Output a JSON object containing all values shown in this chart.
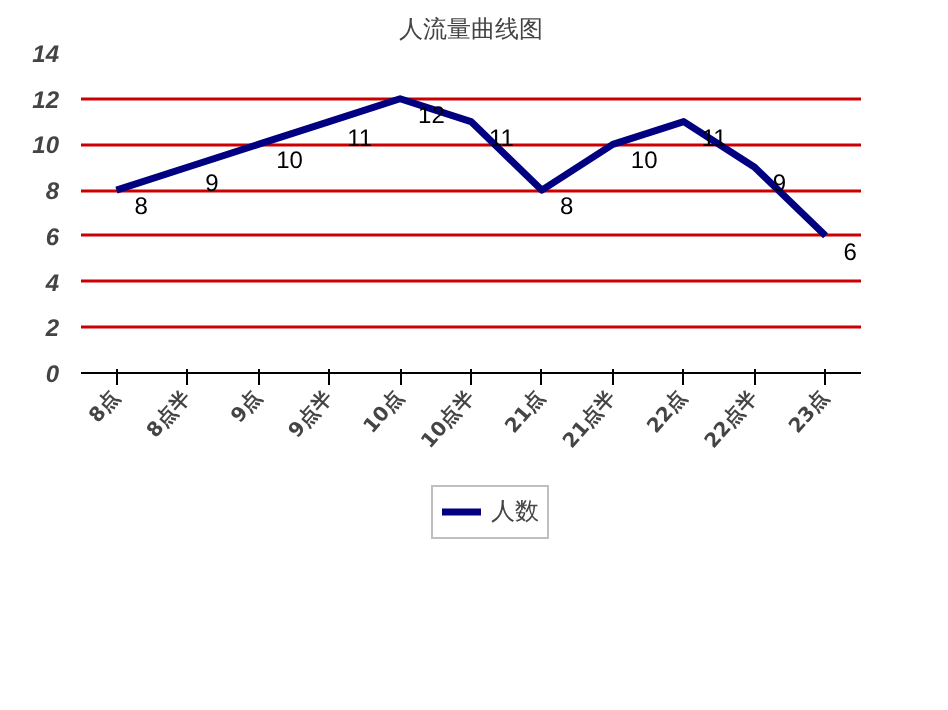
{
  "chart_data": {
    "type": "line",
    "title": "人流量曲线图",
    "categories": [
      "8点",
      "8点半",
      "9点",
      "9点半",
      "10点",
      "10点半",
      "21点",
      "21点半",
      "22点",
      "22点半",
      "23点"
    ],
    "series": [
      {
        "name": "人数",
        "color": "#000080",
        "values": [
          8,
          9,
          10,
          11,
          12,
          11,
          8,
          10,
          11,
          9,
          6
        ]
      }
    ],
    "ylim": [
      0,
      14
    ],
    "yticks": [
      0,
      2,
      4,
      6,
      8,
      10,
      12,
      14
    ],
    "grid": "y",
    "legend": "bottom",
    "data_labels": true,
    "marker": "none",
    "line_style": "solid"
  }
}
